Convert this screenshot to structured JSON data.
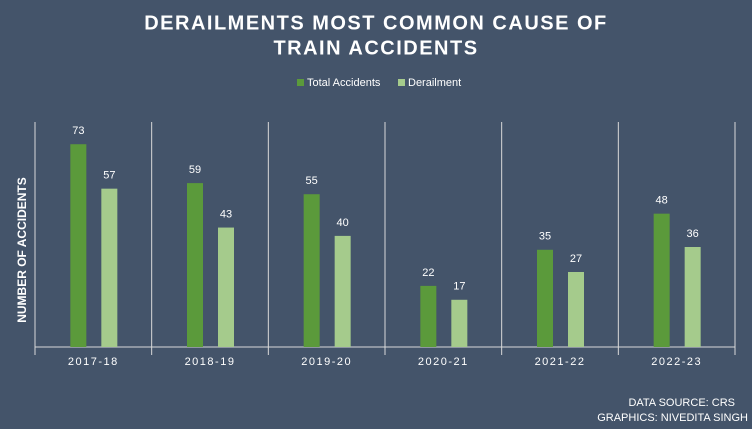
{
  "chart_data": {
    "type": "bar",
    "title": [
      "DERAILMENTS MOST COMMON CAUSE OF",
      "TRAIN ACCIDENTS"
    ],
    "y_label": "NUMBER OF ACCIDENTS",
    "categories": [
      "2017-18",
      "2018-19",
      "2019-20",
      "2020-21",
      "2021-22",
      "2022-23"
    ],
    "series": [
      {
        "name": "Total Accidents",
        "color": "#5b9a3b",
        "values": [
          73,
          59,
          55,
          22,
          35,
          48
        ]
      },
      {
        "name": "Derailment",
        "color": "#a5cb8c",
        "values": [
          57,
          43,
          40,
          17,
          27,
          36
        ]
      }
    ],
    "ylim": [
      0,
      81
    ],
    "legend": "top",
    "notes": [
      "DATA SOURCE: CRS",
      "GRAPHICS: NIVEDITA SINGH"
    ]
  }
}
